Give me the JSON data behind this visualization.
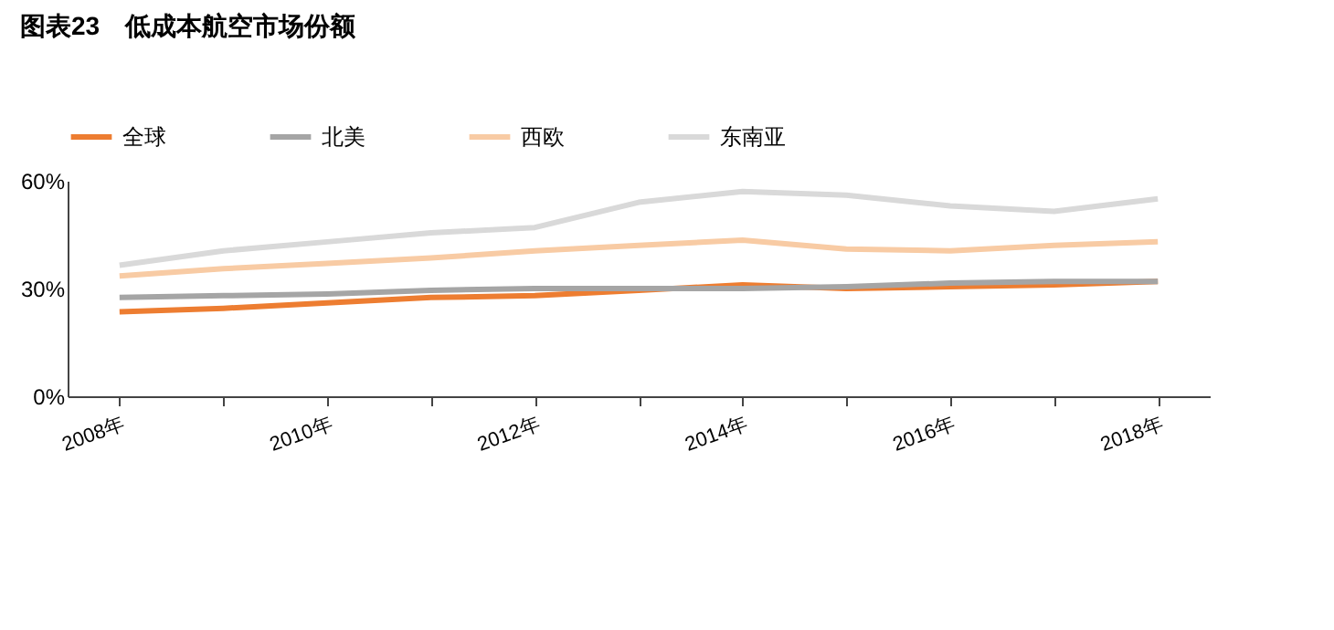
{
  "chart_data": {
    "type": "line",
    "title": "图表23　低成本航空市场份额",
    "categories": [
      "2008年",
      null,
      "2010年",
      null,
      "2012年",
      null,
      "2014年",
      null,
      "2016年",
      null,
      "2018年"
    ],
    "series": [
      {
        "name": "全球",
        "color": "#ed7d31",
        "values": [
          23.5,
          24.5,
          26,
          27.5,
          28,
          29.5,
          31,
          30,
          30.5,
          31,
          32
        ]
      },
      {
        "name": "北美",
        "color": "#a5a5a5",
        "values": [
          27.5,
          28,
          28.5,
          29.5,
          30,
          30,
          30,
          30.5,
          31.5,
          32,
          32
        ]
      },
      {
        "name": "西欧",
        "color": "#f8cba4",
        "values": [
          33.5,
          35.5,
          37,
          38.5,
          40.5,
          42,
          43.5,
          41,
          40.5,
          42,
          43
        ]
      },
      {
        "name": "东南亚",
        "color": "#d9d9d9",
        "values": [
          36.5,
          40.5,
          43,
          45.5,
          47,
          54,
          57,
          56,
          53,
          51.5,
          55
        ]
      }
    ],
    "ylim": [
      0,
      60
    ],
    "yticks": [
      {
        "value": 0,
        "label": "0%"
      },
      {
        "value": 30,
        "label": "30%"
      },
      {
        "value": 60,
        "label": "60%"
      }
    ],
    "legend": "top",
    "grid": false
  }
}
